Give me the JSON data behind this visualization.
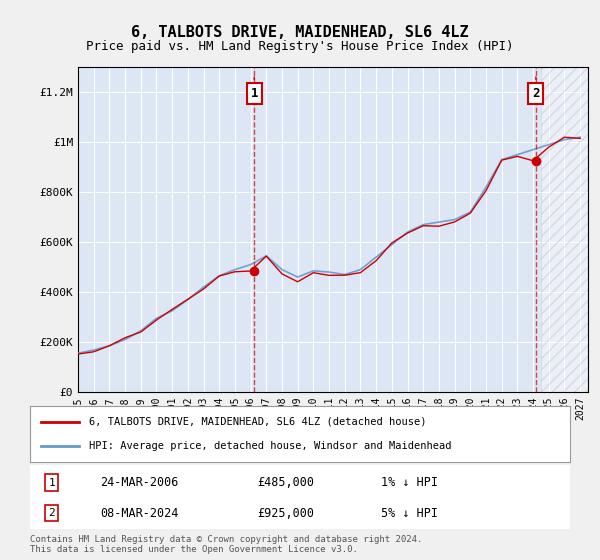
{
  "title": "6, TALBOTS DRIVE, MAIDENHEAD, SL6 4LZ",
  "subtitle": "Price paid vs. HM Land Registry's House Price Index (HPI)",
  "xlabel": "",
  "ylabel": "",
  "ylim": [
    0,
    1300000
  ],
  "xlim_start": 1995.0,
  "xlim_end": 2027.5,
  "yticks": [
    0,
    200000,
    400000,
    600000,
    800000,
    1000000,
    1200000
  ],
  "ytick_labels": [
    "£0",
    "£200K",
    "£400K",
    "£600K",
    "£800K",
    "£1M",
    "£1.2M"
  ],
  "xticks": [
    1995,
    1996,
    1997,
    1998,
    1999,
    2000,
    2001,
    2002,
    2003,
    2004,
    2005,
    2006,
    2007,
    2008,
    2009,
    2010,
    2011,
    2012,
    2013,
    2014,
    2015,
    2016,
    2017,
    2018,
    2019,
    2020,
    2021,
    2022,
    2023,
    2024,
    2025,
    2026,
    2027
  ],
  "sale1_date": 2006.23,
  "sale1_price": 485000,
  "sale2_date": 2024.18,
  "sale2_price": 925000,
  "bg_color": "#dce6f5",
  "plot_bg_color": "#dce6f5",
  "hatch_start": 2024.5,
  "legend_label1": "6, TALBOTS DRIVE, MAIDENHEAD, SL6 4LZ (detached house)",
  "legend_label2": "HPI: Average price, detached house, Windsor and Maidenhead",
  "annotation1_label": "1",
  "annotation1_date": "24-MAR-2006",
  "annotation1_price": "£485,000",
  "annotation1_hpi": "1% ↓ HPI",
  "annotation2_label": "2",
  "annotation2_date": "08-MAR-2024",
  "annotation2_price": "£925,000",
  "annotation2_hpi": "5% ↓ HPI",
  "footer": "Contains HM Land Registry data © Crown copyright and database right 2024.\nThis data is licensed under the Open Government Licence v3.0.",
  "line_color_red": "#cc0000",
  "line_color_blue": "#6699cc",
  "marker_box_color": "#cc0000"
}
